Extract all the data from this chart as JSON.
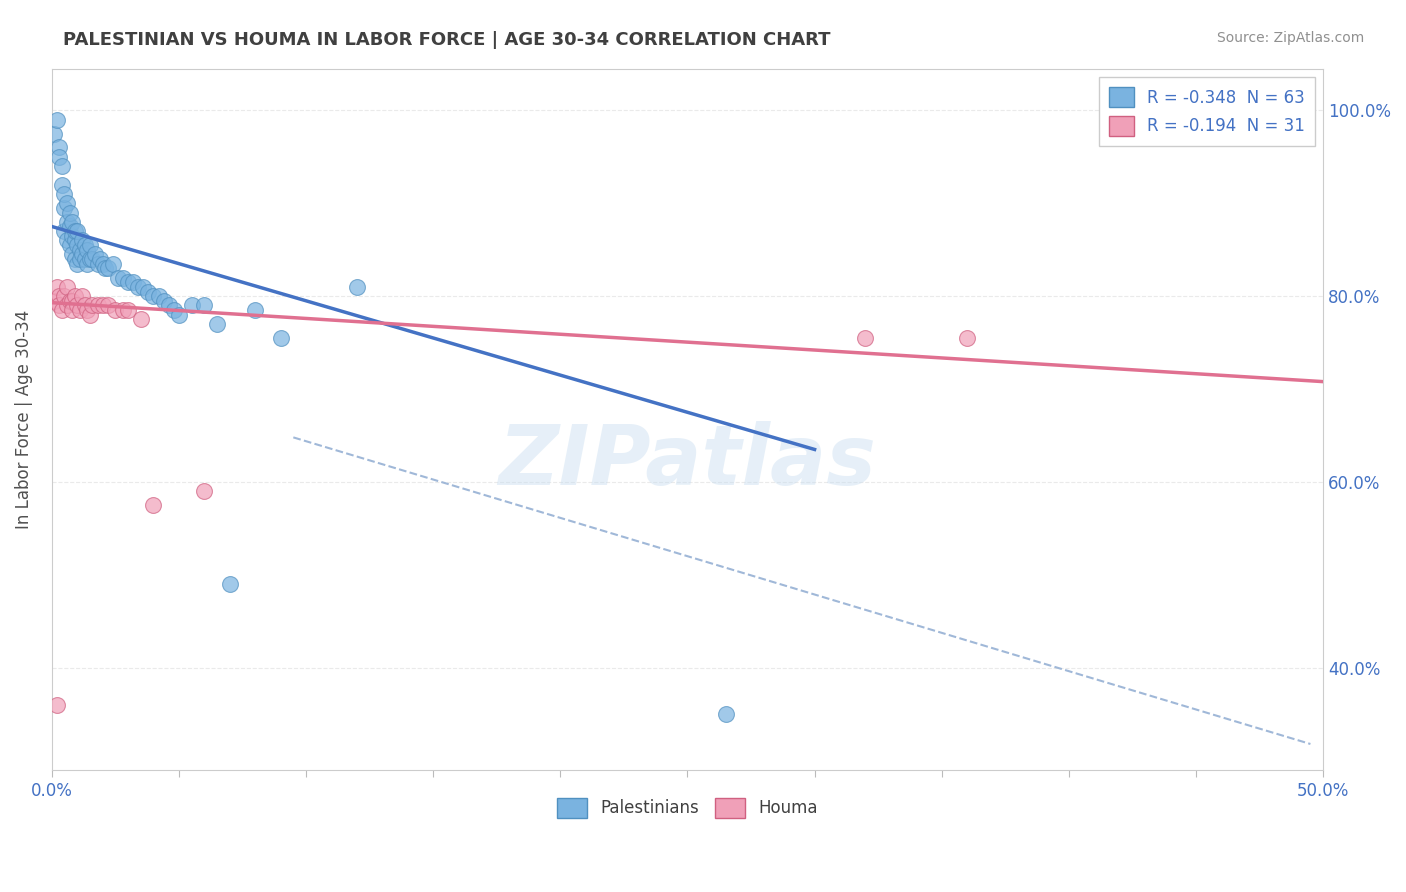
{
  "title": "PALESTINIAN VS HOUMA IN LABOR FORCE | AGE 30-34 CORRELATION CHART",
  "source": "Source: ZipAtlas.com",
  "ylabel": "In Labor Force | Age 30-34",
  "legend_entries": [
    {
      "label": "R = -0.348  N = 63",
      "color": "#a8c8f0"
    },
    {
      "label": "R = -0.194  N = 31",
      "color": "#f0a8c0"
    }
  ],
  "legend_bottom": [
    "Palestinians",
    "Houma"
  ],
  "watermark": "ZIPatlas",
  "blue_scatter_x": [
    0.001,
    0.002,
    0.003,
    0.003,
    0.004,
    0.004,
    0.005,
    0.005,
    0.005,
    0.006,
    0.006,
    0.006,
    0.007,
    0.007,
    0.007,
    0.008,
    0.008,
    0.008,
    0.009,
    0.009,
    0.009,
    0.01,
    0.01,
    0.01,
    0.011,
    0.011,
    0.012,
    0.012,
    0.013,
    0.013,
    0.014,
    0.014,
    0.015,
    0.015,
    0.016,
    0.017,
    0.018,
    0.019,
    0.02,
    0.021,
    0.022,
    0.024,
    0.026,
    0.028,
    0.03,
    0.032,
    0.034,
    0.036,
    0.038,
    0.04,
    0.042,
    0.044,
    0.046,
    0.048,
    0.05,
    0.055,
    0.06,
    0.065,
    0.07,
    0.08,
    0.09,
    0.12,
    0.265
  ],
  "blue_scatter_y": [
    0.975,
    0.99,
    0.96,
    0.95,
    0.92,
    0.94,
    0.895,
    0.87,
    0.91,
    0.88,
    0.86,
    0.9,
    0.875,
    0.855,
    0.89,
    0.865,
    0.845,
    0.88,
    0.86,
    0.84,
    0.87,
    0.855,
    0.835,
    0.87,
    0.85,
    0.84,
    0.845,
    0.86,
    0.84,
    0.855,
    0.835,
    0.85,
    0.84,
    0.855,
    0.84,
    0.845,
    0.835,
    0.84,
    0.835,
    0.83,
    0.83,
    0.835,
    0.82,
    0.82,
    0.815,
    0.815,
    0.81,
    0.81,
    0.805,
    0.8,
    0.8,
    0.795,
    0.79,
    0.785,
    0.78,
    0.79,
    0.79,
    0.77,
    0.49,
    0.785,
    0.755,
    0.81,
    0.35
  ],
  "pink_scatter_x": [
    0.001,
    0.002,
    0.003,
    0.003,
    0.004,
    0.005,
    0.006,
    0.006,
    0.007,
    0.008,
    0.008,
    0.009,
    0.01,
    0.011,
    0.012,
    0.013,
    0.014,
    0.015,
    0.016,
    0.018,
    0.02,
    0.022,
    0.025,
    0.028,
    0.03,
    0.035,
    0.04,
    0.06,
    0.32,
    0.36,
    0.002
  ],
  "pink_scatter_y": [
    0.795,
    0.81,
    0.8,
    0.79,
    0.785,
    0.8,
    0.79,
    0.81,
    0.795,
    0.795,
    0.785,
    0.8,
    0.79,
    0.785,
    0.8,
    0.79,
    0.785,
    0.78,
    0.79,
    0.79,
    0.79,
    0.79,
    0.785,
    0.785,
    0.785,
    0.775,
    0.575,
    0.59,
    0.755,
    0.755,
    0.36
  ],
  "blue_line_x": [
    0.0,
    0.3
  ],
  "blue_line_y": [
    0.875,
    0.635
  ],
  "pink_line_x": [
    0.0,
    0.5
  ],
  "pink_line_y": [
    0.793,
    0.708
  ],
  "dashed_line_x": [
    0.095,
    0.495
  ],
  "dashed_line_y": [
    0.648,
    0.318
  ],
  "xmin": 0.0,
  "xmax": 0.5,
  "ymin": 0.29,
  "ymax": 1.045,
  "blue_color": "#7ab3e0",
  "pink_color": "#f0a0b8",
  "blue_line_color": "#4472c4",
  "pink_line_color": "#e07090",
  "dashed_line_color": "#a0b8d8",
  "grid_color": "#e8e8e8",
  "title_color": "#404040",
  "axis_label_color": "#4472c4",
  "background_color": "#ffffff"
}
